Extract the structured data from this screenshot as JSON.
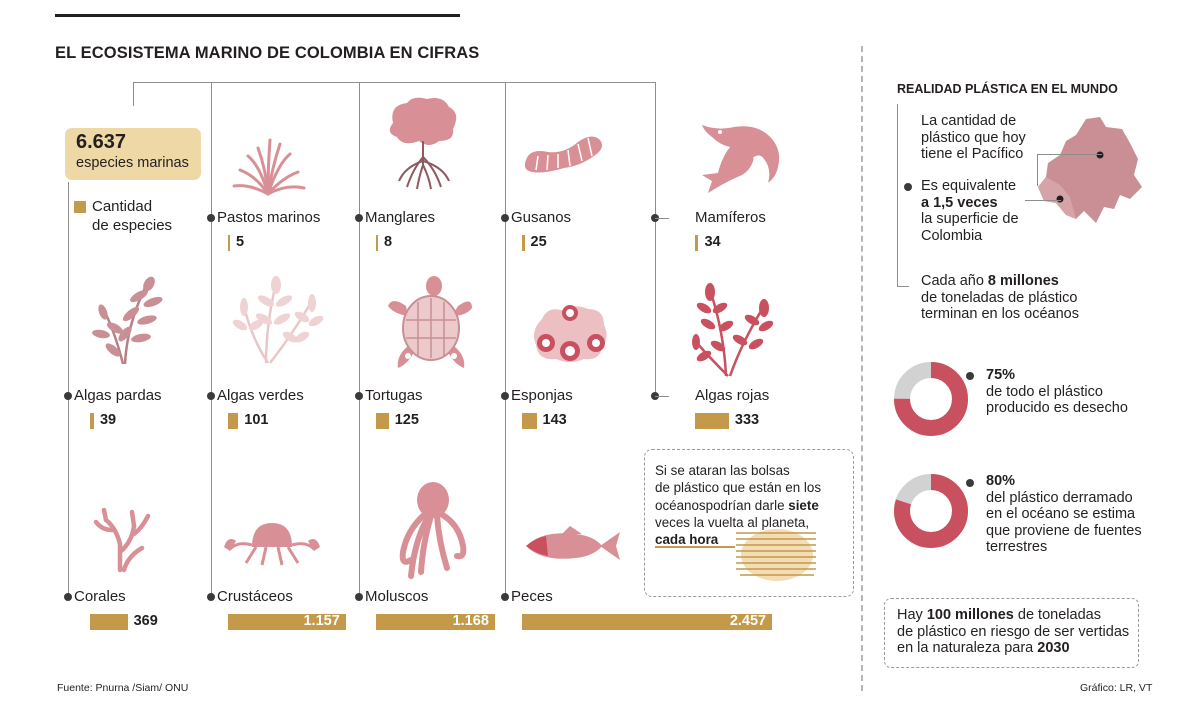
{
  "title": "EL ECOSISTEMA MARINO DE COLOMBIA EN CIFRAS",
  "total": {
    "value": "6.637",
    "label": "especies marinas"
  },
  "legend": {
    "line1": "Cantidad",
    "line2": "de especies"
  },
  "colors": {
    "bar": "#c49a4a",
    "illustration": "#d98f96",
    "accent": "#c9505f",
    "ring": "#c9505f",
    "ring_rest": "#d2d2d2",
    "total_box": "#eed8a6"
  },
  "chart_data": {
    "type": "bar",
    "title": "EL ECOSISTEMA MARINO DE COLOMBIA EN CIFRAS",
    "xlabel": "",
    "ylabel": "",
    "categories": [
      "Pastos marinos",
      "Manglares",
      "Gusanos",
      "Mamíferos",
      "Algas pardas",
      "Algas verdes",
      "Tortugas",
      "Esponjas",
      "Algas rojas",
      "Corales",
      "Crustáceos",
      "Moluscos",
      "Peces"
    ],
    "values": [
      5,
      8,
      25,
      34,
      39,
      101,
      125,
      143,
      333,
      369,
      1157,
      1168,
      2457
    ],
    "value_labels": [
      "5",
      "8",
      "25",
      "34",
      "39",
      "101",
      "125",
      "143",
      "333",
      "369",
      "1.157",
      "1.168",
      "2.457"
    ],
    "icons": [
      "seagrass-icon",
      "mangrove-icon",
      "worm-icon",
      "dolphin-icon",
      "brown-algae-icon",
      "green-algae-icon",
      "turtle-icon",
      "sponge-icon",
      "red-algae-icon",
      "coral-icon",
      "crab-icon",
      "octopus-icon",
      "fish-icon"
    ]
  },
  "note": {
    "line1": "Si se ataran las bolsas",
    "line2": "de plástico que están en los",
    "line3_pre": "océanospodrían darle ",
    "line3_bold": "siete",
    "line4": "veces la vuelta al planeta,",
    "line5_bold": "cada hora"
  },
  "right": {
    "title": "REALIDAD PLÁSTICA EN EL MUNDO",
    "pacific_l1": "La cantidad de",
    "pacific_l2": "plástico que hoy",
    "pacific_l3": "tiene el Pacífico",
    "equiv_l1": "Es equivalente",
    "equiv_l2": "a 1,5 veces",
    "equiv_l3": "la superficie de",
    "equiv_l4": "Colombia",
    "year_l1_pre": "Cada año ",
    "year_l1_bold": "8 millones",
    "year_l2": "de toneladas de plástico",
    "year_l3": "terminan en los océanos",
    "stat1": {
      "pct": "75%",
      "value": 75,
      "l1": "de todo el plástico",
      "l2": "producido es desecho"
    },
    "stat2": {
      "pct": "80%",
      "value": 80,
      "l1": "del plástico derramado",
      "l2": "en el océano se estima",
      "l3": "que proviene de fuentes",
      "l4": "terrestres"
    },
    "bottom_l1_pre": "Hay ",
    "bottom_l1_bold": "100 millones",
    "bottom_l1_post": " de toneladas",
    "bottom_l2": "de plástico en riesgo de ser vertidas",
    "bottom_l3_pre": "en la naturaleza para ",
    "bottom_l3_bold": "2030"
  },
  "source": "Fuente: Pnurna /Siam/ ONU",
  "credit": "Gráfico: LR, VT"
}
